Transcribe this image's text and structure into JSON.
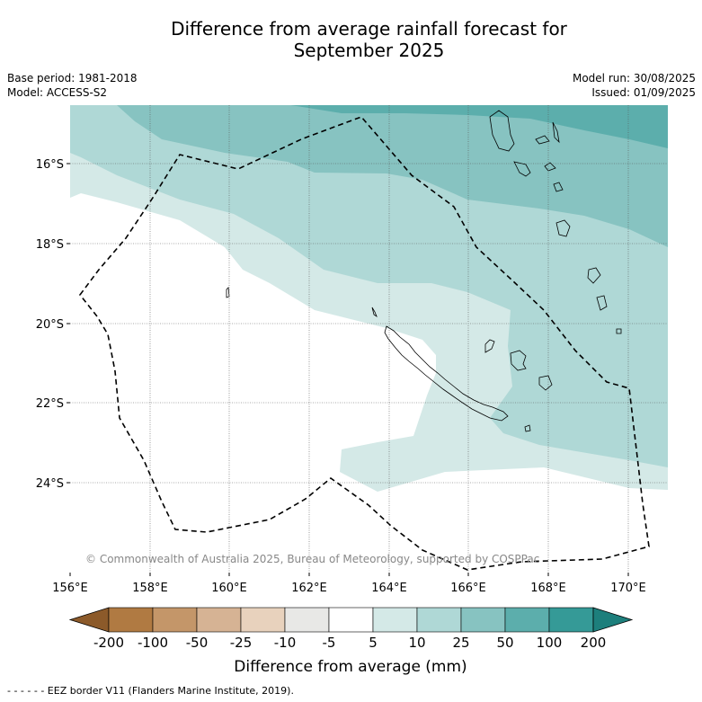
{
  "header": {
    "title_line1": "Difference from average rainfall forecast for",
    "title_line2": "September 2025",
    "base_period": "Base period: 1981-2018",
    "model": "Model: ACCESS-S2",
    "model_run": "Model run: 30/08/2025",
    "issued": "Issued: 01/09/2025"
  },
  "map": {
    "lon_labels": [
      "156°E",
      "158°E",
      "160°E",
      "162°E",
      "164°E",
      "166°E",
      "168°E",
      "170°E"
    ],
    "lat_labels": [
      "16°S",
      "18°S",
      "20°S",
      "22°S",
      "24°S"
    ],
    "copyright": "© Commonwealth of Australia 2025, Bureau of Meteorology, supported by COSPPac"
  },
  "legend": {
    "tick_labels": [
      "-200",
      "-100",
      "-50",
      "-25",
      "-10",
      "-5",
      "5",
      "10",
      "25",
      "50",
      "100",
      "200"
    ],
    "title": "Difference from average (mm)",
    "colors": [
      "#8c5a2a",
      "#b07a42",
      "#c49669",
      "#d6b394",
      "#e8d2bd",
      "#e8e8e6",
      "#ffffff",
      "#d4e9e7",
      "#afd8d6",
      "#87c3c1",
      "#5caeac",
      "#359a97",
      "#1d7f7c"
    ]
  },
  "footnote": "- -  - -  - - EEZ border V11 (Flanders Marine Institute, 2019)."
}
